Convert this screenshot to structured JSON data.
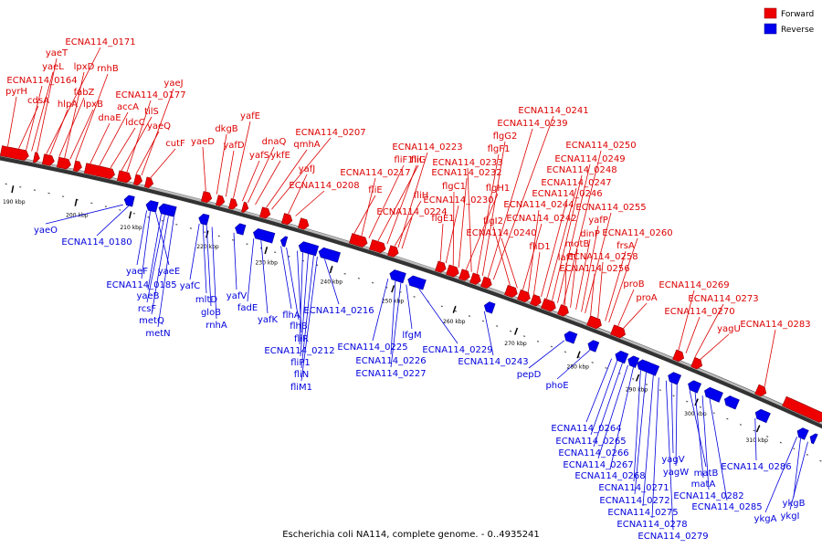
{
  "caption": "Escherichia coli NA114, complete genome. - 0..4935241",
  "legend": [
    {
      "label": "Forward",
      "color": "#ee0000"
    },
    {
      "label": "Reverse",
      "color": "#0000ee"
    }
  ],
  "scale_ticks": [
    "190 kbp",
    "200 kbp",
    "210 kbp",
    "220 kbp",
    "230 kbp",
    "240 kbp",
    "250 kbp",
    "260 kbp",
    "270 kbp",
    "280 kbp",
    "290 kbp",
    "300 kbp",
    "310 kbp"
  ],
  "forward_labels": [
    "pyrH",
    "cdsA",
    "ECNA114_0164",
    "yaeL",
    "yaeT",
    "ECNA114_0171",
    "hlpA",
    "fabZ",
    "lpxD",
    "lpxB",
    "rnhB",
    "dnaE",
    "accA",
    "ldcC",
    "tilS",
    "ECNA114_0177",
    "yaeQ",
    "yaeJ",
    "cutF",
    "yaeD",
    "dkgB",
    "yafD",
    "yafE",
    "yafS",
    "dnaQ",
    "ykfE",
    "qmhA",
    "ECNA114_0207",
    "yafJ",
    "ECNA114_0208",
    "fliE",
    "ECNA114_0217",
    "fliF1",
    "fliG",
    "fliI",
    "fliH",
    "ECNA114_0223",
    "ECNA114_0224",
    "flgE1",
    "ECNA114_0230",
    "flgC1",
    "ECNA114_0232",
    "flgH1",
    "ECNA114_0233",
    "flgF1",
    "flgG2",
    "ECNA114_0239",
    "ECNA114_0241",
    "flgI2",
    "ECNA114_0240",
    "ECNA114_0242",
    "ECNA114_0244",
    "fliD1",
    "ECNA114_0246",
    "ECNA114_0247",
    "ECNA114_0248",
    "ECNA114_0249",
    "ECNA114_0250",
    "lafT",
    "motB",
    "dinP",
    "yafP",
    "ECNA114_0255",
    "ECNA114_0256",
    "ECNA114_0258",
    "frsA",
    "ECNA114_0260",
    "proB",
    "proA",
    "ECNA114_0269",
    "ECNA114_0270",
    "ECNA114_0273",
    "yagU",
    "ECNA114_0283"
  ],
  "reverse_labels": [
    "yaeO",
    "ECNA114_0180",
    "yaeF",
    "ECNA114_0185",
    "yaeE",
    "yaeB",
    "rcsF",
    "metQ",
    "metN",
    "yafC",
    "mltD",
    "gloB",
    "rnhA",
    "yafV",
    "fadE",
    "yafK",
    "flhA",
    "flhB",
    "fliR",
    "ECNA114_0212",
    "fliP1",
    "fliN",
    "fliM1",
    "ECNA114_0216",
    "ECNA114_0225",
    "ECNA114_0226",
    "ECNA114_0227",
    "lfgM",
    "ECNA114_0229",
    "ECNA114_0243",
    "pepD",
    "phoE",
    "ECNA114_0264",
    "ECNA114_0265",
    "ECNA114_0266",
    "ECNA114_0267",
    "ECNA114_0268",
    "ECNA114_0271",
    "ECNA114_0272",
    "ECNA114_0275",
    "ECNA114_0278",
    "ECNA114_0279",
    "yagV",
    "yagW",
    "matB",
    "matA",
    "ECNA114_0282",
    "ECNA114_0285",
    "ECNA114_0286",
    "ykgA",
    "ykgB",
    "ykgI"
  ]
}
